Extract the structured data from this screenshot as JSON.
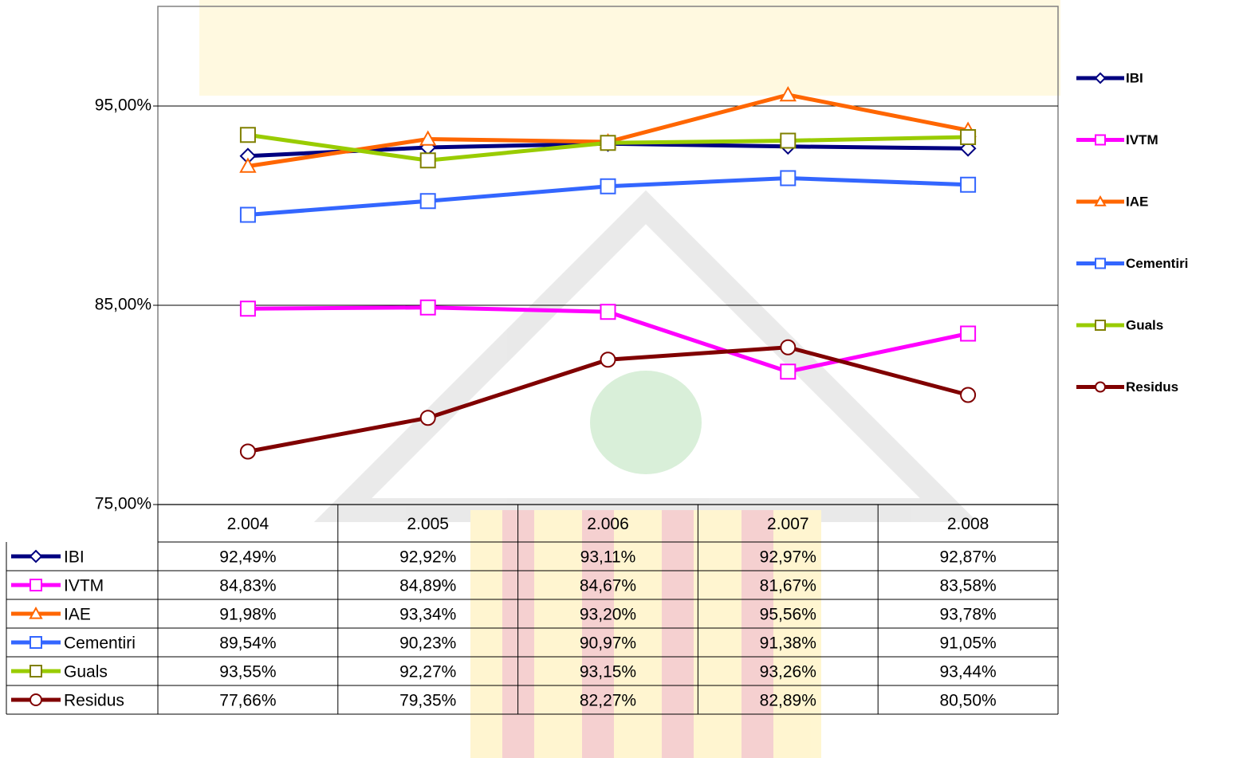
{
  "chart_data": {
    "type": "line",
    "categories": [
      "2.004",
      "2.005",
      "2.006",
      "2.007",
      "2.008"
    ],
    "ylim": [
      75,
      100
    ],
    "yticks": [
      {
        "value": 75,
        "label": "75,00%"
      },
      {
        "value": 85,
        "label": "85,00%"
      },
      {
        "value": 95,
        "label": "95,00%"
      }
    ],
    "grid": true,
    "legend": "right",
    "series": [
      {
        "name": "IBI",
        "color": "#000080",
        "marker": "diamond",
        "values": [
          92.49,
          92.92,
          93.11,
          92.97,
          92.87
        ],
        "value_labels": [
          "92,49%",
          "92,92%",
          "93,11%",
          "92,97%",
          "92,87%"
        ]
      },
      {
        "name": "IVTM",
        "color": "#ff00ff",
        "marker": "square",
        "values": [
          84.83,
          84.89,
          84.67,
          81.67,
          83.58
        ],
        "value_labels": [
          "84,83%",
          "84,89%",
          "84,67%",
          "81,67%",
          "83,58%"
        ]
      },
      {
        "name": "IAE",
        "color": "#ff6600",
        "marker": "triangle",
        "values": [
          91.98,
          93.34,
          93.2,
          95.56,
          93.78
        ],
        "value_labels": [
          "91,98%",
          "93,34%",
          "93,20%",
          "95,56%",
          "93,78%"
        ]
      },
      {
        "name": "Cementiri",
        "color": "#3366ff",
        "marker": "square",
        "values": [
          89.54,
          90.23,
          90.97,
          91.38,
          91.05
        ],
        "value_labels": [
          "89,54%",
          "90,23%",
          "90,97%",
          "91,38%",
          "91,05%"
        ]
      },
      {
        "name": "Guals",
        "color": "#99cc00",
        "marker": "square",
        "values": [
          93.55,
          92.27,
          93.15,
          93.26,
          93.44
        ],
        "value_labels": [
          "93,55%",
          "92,27%",
          "93,15%",
          "93,26%",
          "93,44%"
        ]
      },
      {
        "name": "Residus",
        "color": "#800000",
        "marker": "circle",
        "values": [
          77.66,
          79.35,
          82.27,
          82.89,
          80.5
        ],
        "value_labels": [
          "77,66%",
          "79,35%",
          "82,27%",
          "82,89%",
          "80,50%"
        ]
      }
    ]
  }
}
